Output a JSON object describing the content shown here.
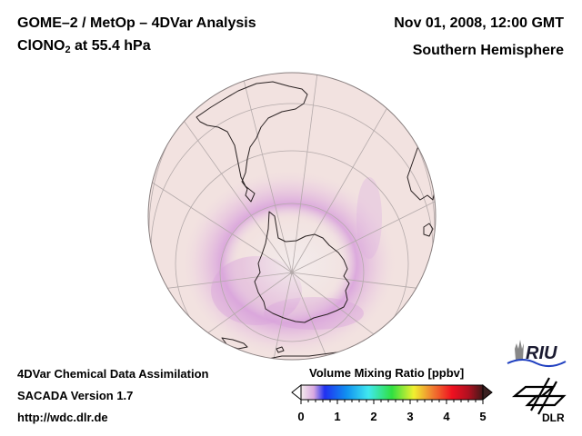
{
  "header": {
    "title_line1": "GOME–2 / MetOp – 4DVar Analysis",
    "species_base": "ClONO",
    "species_sub": "2",
    "species_suffix": " at 55.4 hPa",
    "date": "Nov 01, 2008, 12:00 GMT",
    "region": "Southern Hemisphere"
  },
  "footer": {
    "line1": "4DVar Chemical Data Assimilation",
    "line2": "SACADA Version 1.7",
    "line3": "http://wdc.dlr.de"
  },
  "colorbar": {
    "title": "Volume Mixing Ratio [ppbv]",
    "min": 0,
    "max": 5,
    "ticks": [
      "0",
      "1",
      "2",
      "3",
      "4",
      "5"
    ],
    "colors": [
      "#f4ecec",
      "#d8a8e0",
      "#2030f0",
      "#1090f0",
      "#40e8f0",
      "#30e040",
      "#f0f030",
      "#f08030",
      "#f01020",
      "#b01020",
      "#401818"
    ]
  },
  "logos": {
    "riu": "RIU",
    "dlr": "DLR"
  },
  "map": {
    "projection": "orthographic south polar",
    "background_color": "#f2e2e0",
    "low_value_color": "#d9a3dc"
  }
}
